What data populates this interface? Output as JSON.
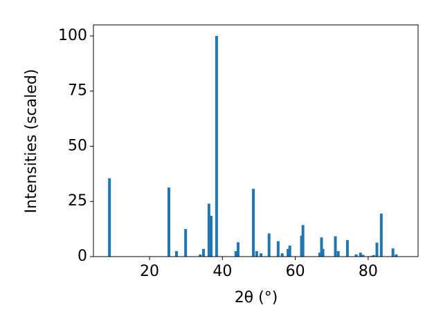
{
  "chart_data": {
    "type": "bar",
    "x_label": "2θ (°)",
    "y_label": "Intensities (scaled)",
    "x": [
      9.0,
      25.3,
      27.4,
      29.9,
      33.9,
      34.8,
      36.3,
      36.9,
      38.4,
      43.7,
      44.3,
      48.5,
      49.4,
      50.6,
      52.8,
      55.3,
      56.4,
      58.0,
      58.5,
      61.7,
      62.1,
      66.7,
      67.2,
      67.6,
      71.0,
      71.8,
      74.3,
      76.7,
      77.9,
      78.6,
      80.9,
      81.5,
      82.4,
      83.6,
      86.8,
      87.7
    ],
    "values": [
      35.5,
      31.3,
      2.5,
      12.5,
      1,
      3.5,
      24,
      18.5,
      100,
      2.5,
      6.5,
      30.7,
      2.5,
      1.5,
      10.5,
      7,
      1.5,
      3.5,
      5,
      9.5,
      14.3,
      1.8,
      8.7,
      3.5,
      9.2,
      2.5,
      7.5,
      1,
      1.8,
      0.8,
      0.3,
      0.7,
      6.3,
      19.5,
      3.7,
      1
    ],
    "color": "#1f77b4",
    "xlim": [
      4.6,
      93.7
    ],
    "xticks": [
      20,
      40,
      60,
      80
    ],
    "ylim": [
      0,
      105
    ],
    "yticks": [
      0,
      25,
      50,
      75,
      100
    ]
  }
}
